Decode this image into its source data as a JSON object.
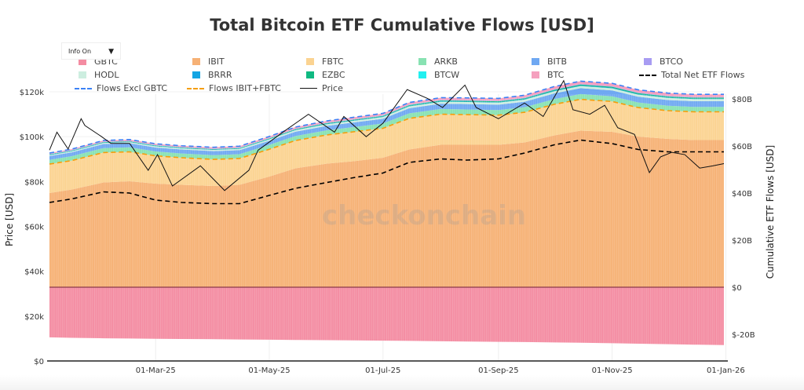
{
  "chart_data": {
    "type": "area",
    "title": "Total Bitcoin ETF Cumulative Flows [USD]",
    "ylabel_left": "Price [USD]",
    "ylabel_right": "Cumulative ETF Flows [USD]",
    "yticks_left": [
      "$0",
      "$20k",
      "$40k",
      "$60k",
      "$80k",
      "$100k",
      "$120k"
    ],
    "yticks_right": [
      "$-20B",
      "$0",
      "$20B",
      "$40B",
      "$60B",
      "$80B"
    ],
    "xticks": [
      "01-Mar-25",
      "01-May-25",
      "01-Jul-25",
      "01-Sep-25",
      "01-Nov-25",
      "01-Jan-26"
    ],
    "xtick_dates": [
      "2025-03-01",
      "2025-05-01",
      "2025-07-01",
      "2025-09-01",
      "2025-11-01",
      "2026-01-01"
    ],
    "xlim": [
      "2025-01-03",
      "2025-12-31"
    ],
    "ylim_left": [
      0,
      120000
    ],
    "ylim_right": [
      -30,
      85
    ],
    "units_right": "USD billions",
    "grid": true,
    "legend_position": "top",
    "dates": [
      "2025-01-03",
      "2025-01-15",
      "2025-02-01",
      "2025-02-15",
      "2025-03-01",
      "2025-03-15",
      "2025-04-01",
      "2025-04-15",
      "2025-05-01",
      "2025-05-15",
      "2025-06-01",
      "2025-06-15",
      "2025-07-01",
      "2025-07-15",
      "2025-08-01",
      "2025-08-15",
      "2025-09-01",
      "2025-09-15",
      "2025-10-01",
      "2025-10-15",
      "2025-11-01",
      "2025-11-15",
      "2025-12-01",
      "2025-12-15",
      "2025-12-31"
    ],
    "series": [
      {
        "name": "GBTC",
        "color": "#f48ca2",
        "values": [
          -21.3,
          -21.5,
          -21.7,
          -21.8,
          -21.9,
          -22.0,
          -22.1,
          -22.2,
          -22.3,
          -22.4,
          -22.5,
          -22.6,
          -22.7,
          -22.8,
          -22.95,
          -23.1,
          -23.2,
          -23.3,
          -23.45,
          -23.6,
          -23.8,
          -24.0,
          -24.2,
          -24.4,
          -24.6
        ]
      },
      {
        "name": "IBIT",
        "color": "#f6b175",
        "values": [
          40,
          41.5,
          44.5,
          45,
          44,
          43.5,
          43,
          43.5,
          47,
          50.5,
          52.5,
          53.5,
          55,
          58.5,
          60.5,
          60.5,
          60.5,
          61.5,
          64.5,
          66.5,
          66,
          64,
          63,
          62.5,
          62.5
        ]
      },
      {
        "name": "FBTC",
        "color": "#fbd391",
        "values": [
          12.3,
          12.3,
          12.7,
          12.5,
          11.8,
          11.5,
          11.3,
          11.2,
          11.6,
          11.8,
          12.2,
          12.5,
          12.5,
          13.2,
          13.0,
          12.8,
          12.6,
          12.8,
          13.2,
          13.3,
          12.9,
          12.3,
          12.0,
          12.0,
          12.0
        ]
      },
      {
        "name": "ARKB",
        "color": "#88e2b2",
        "values": [
          1.8,
          1.85,
          1.9,
          1.9,
          1.85,
          1.8,
          1.8,
          1.8,
          1.85,
          1.9,
          1.95,
          2.0,
          2.05,
          2.15,
          2.2,
          2.2,
          2.15,
          2.15,
          2.2,
          2.25,
          2.2,
          2.15,
          2.1,
          2.1,
          2.1
        ]
      },
      {
        "name": "BITB",
        "color": "#6fa8f2",
        "values": [
          1.6,
          1.65,
          1.75,
          1.75,
          1.7,
          1.7,
          1.7,
          1.7,
          1.75,
          1.85,
          1.9,
          1.95,
          2.0,
          2.15,
          2.25,
          2.3,
          2.3,
          2.35,
          2.45,
          2.5,
          2.5,
          2.45,
          2.4,
          2.4,
          2.4
        ]
      },
      {
        "name": "HODL",
        "color": "#cdeee0",
        "values": [
          0.4,
          0.42,
          0.45,
          0.48,
          0.5,
          0.5,
          0.52,
          0.55,
          0.6,
          0.65,
          0.7,
          0.72,
          0.75,
          0.8,
          0.82,
          0.85,
          0.86,
          0.88,
          0.9,
          0.92,
          0.92,
          0.9,
          0.9,
          0.9,
          0.9
        ]
      },
      {
        "name": "BRRR",
        "color": "#14a5e3",
        "values": [
          0.1,
          0.1,
          0.11,
          0.11,
          0.11,
          0.11,
          0.12,
          0.12,
          0.13,
          0.14,
          0.15,
          0.15,
          0.16,
          0.17,
          0.18,
          0.18,
          0.18,
          0.19,
          0.2,
          0.2,
          0.2,
          0.2,
          0.2,
          0.2,
          0.2
        ]
      },
      {
        "name": "EZBC",
        "color": "#10b981",
        "values": [
          0.2,
          0.2,
          0.22,
          0.22,
          0.22,
          0.22,
          0.23,
          0.23,
          0.25,
          0.27,
          0.29,
          0.3,
          0.31,
          0.34,
          0.36,
          0.36,
          0.36,
          0.37,
          0.39,
          0.4,
          0.4,
          0.4,
          0.4,
          0.4,
          0.4
        ]
      },
      {
        "name": "BTCW",
        "color": "#22f0f0",
        "values": [
          0.05,
          0.05,
          0.05,
          0.05,
          0.05,
          0.05,
          0.05,
          0.05,
          0.05,
          0.05,
          0.05,
          0.05,
          0.05,
          0.05,
          0.05,
          0.05,
          0.05,
          0.05,
          0.05,
          0.05,
          0.05,
          0.05,
          0.05,
          0.05,
          0.05
        ]
      },
      {
        "name": "BTCO",
        "color": "#a89cf2",
        "values": [
          0.15,
          0.15,
          0.16,
          0.16,
          0.15,
          0.15,
          0.15,
          0.15,
          0.16,
          0.17,
          0.17,
          0.18,
          0.18,
          0.19,
          0.2,
          0.2,
          0.2,
          0.2,
          0.21,
          0.21,
          0.21,
          0.2,
          0.2,
          0.2,
          0.2
        ]
      },
      {
        "name": "BTC",
        "color": "#f5a0be",
        "values": [
          0.4,
          0.45,
          0.5,
          0.55,
          0.55,
          0.55,
          0.58,
          0.6,
          0.65,
          0.7,
          0.75,
          0.8,
          0.85,
          0.9,
          0.95,
          0.98,
          1.0,
          1.05,
          1.15,
          1.2,
          1.22,
          1.2,
          1.2,
          1.2,
          1.2
        ]
      }
    ],
    "total_net": {
      "name": "Total Net ETF Flows",
      "color": "#000000",
      "values": [
        36,
        37.5,
        40.5,
        40,
        37,
        36,
        35.5,
        35.5,
        39,
        42,
        44.5,
        46.5,
        48.5,
        53,
        54.5,
        54,
        54.5,
        57,
        60.5,
        62.5,
        61,
        58.5,
        57.5,
        57.5,
        57.5
      ]
    },
    "flows_excl_gbtc": {
      "name": "Flows Excl GBTC",
      "color": "#3b82f6"
    },
    "flows_ibit_fbtc": {
      "name": "Flows IBIT+FBTC",
      "color": "#f59e0b"
    },
    "price": {
      "name": "Price",
      "color": "#111111",
      "dates": [
        "2025-01-03",
        "2025-01-07",
        "2025-01-13",
        "2025-01-20",
        "2025-01-22",
        "2025-01-31",
        "2025-02-05",
        "2025-02-15",
        "2025-02-25",
        "2025-03-02",
        "2025-03-10",
        "2025-03-25",
        "2025-04-07",
        "2025-04-20",
        "2025-04-25",
        "2025-05-10",
        "2025-05-22",
        "2025-06-05",
        "2025-06-10",
        "2025-06-22",
        "2025-07-01",
        "2025-07-14",
        "2025-07-25",
        "2025-08-02",
        "2025-08-14",
        "2025-08-20",
        "2025-09-01",
        "2025-09-15",
        "2025-09-25",
        "2025-10-06",
        "2025-10-11",
        "2025-10-20",
        "2025-10-28",
        "2025-11-04",
        "2025-11-13",
        "2025-11-21",
        "2025-11-27",
        "2025-12-03",
        "2025-12-10",
        "2025-12-18",
        "2025-12-25",
        "2025-12-31"
      ],
      "values": [
        94000,
        102000,
        94500,
        108000,
        105000,
        100000,
        97000,
        97000,
        85000,
        92000,
        78000,
        87000,
        76000,
        85000,
        94000,
        103000,
        110000,
        102000,
        109000,
        100000,
        106000,
        121000,
        117000,
        113000,
        123000,
        113000,
        108000,
        115000,
        109000,
        125000,
        112000,
        110000,
        114000,
        104000,
        101000,
        84000,
        91000,
        93000,
        92000,
        86000,
        87000,
        88000
      ]
    }
  },
  "info_dropdown": {
    "label": "Info On",
    "arrow": "▼"
  },
  "watermark": "checkonchain"
}
